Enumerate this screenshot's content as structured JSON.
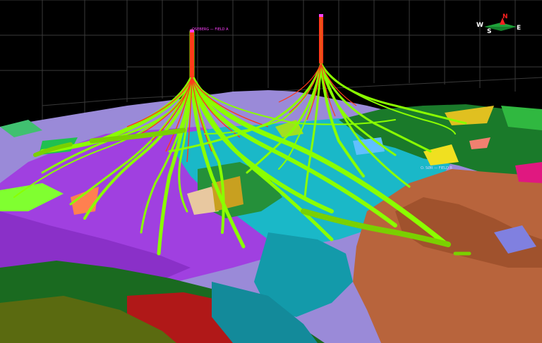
{
  "labels": {
    "platform_a": "OSEBERG — FIELD A",
    "platform_b": "O. SØR — FIELD B"
  },
  "compass": {
    "north": "N",
    "south": "S",
    "east": "E",
    "west": "W",
    "north_color": "#ff2020",
    "needle_color": "#1fa33a"
  },
  "colors": {
    "background": "#000000",
    "grid": "#3a3a3a",
    "well_trajectory": "#8aff00",
    "well_wellbore_core": "#ff3a1a",
    "horizon_purple": "#a040e0",
    "horizon_lavender": "#9a8ad8",
    "horizon_cyan": "#1ab8c8",
    "horizon_brown": "#b8643c",
    "horizon_green": "#1a7a2a",
    "horizon_red": "#b01818"
  }
}
